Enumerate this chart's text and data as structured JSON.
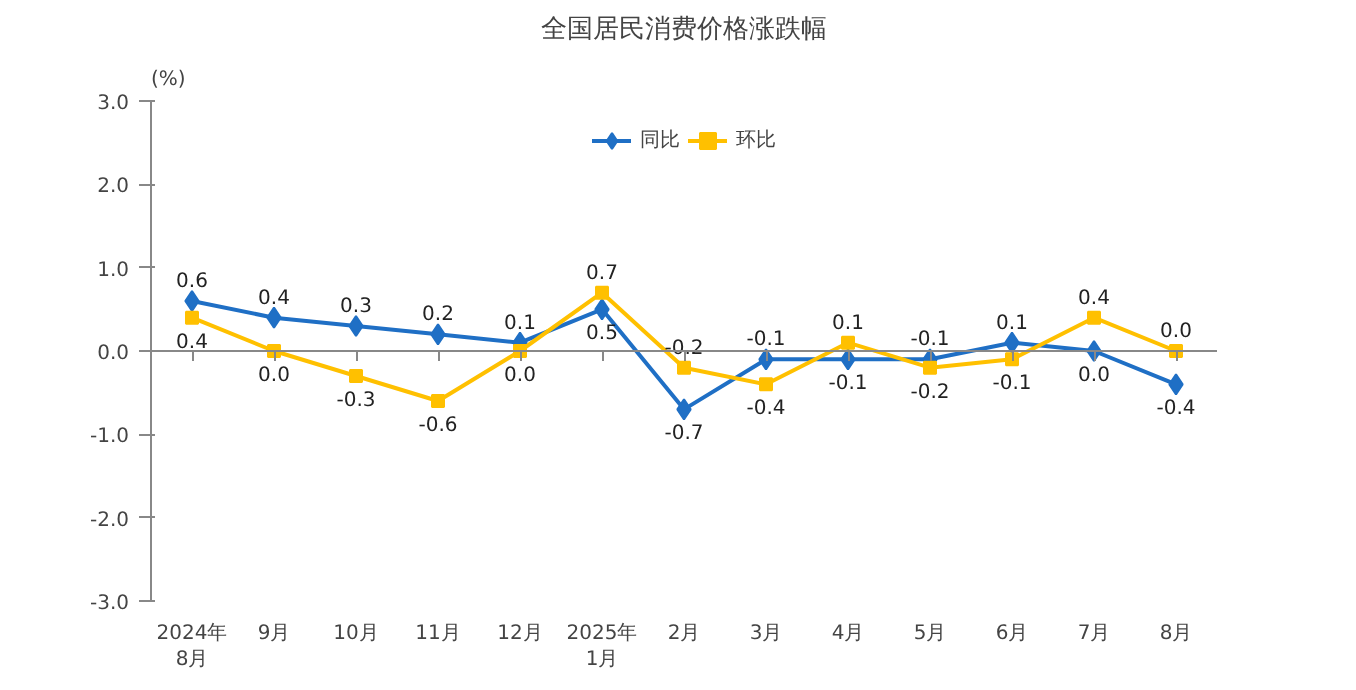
{
  "chart_data": {
    "type": "line",
    "title": "全国居民消费价格涨跌幅",
    "ylabel": "(%)",
    "categories": [
      "2024年\n8月",
      "9月",
      "10月",
      "11月",
      "12月",
      "2025年\n1月",
      "2月",
      "3月",
      "4月",
      "5月",
      "6月",
      "7月",
      "8月"
    ],
    "series": [
      {
        "name": "同比",
        "color": "#1f6fc5",
        "marker": "diamond",
        "values": [
          0.6,
          0.4,
          0.3,
          0.2,
          0.1,
          0.5,
          -0.7,
          -0.1,
          -0.1,
          -0.1,
          0.1,
          0.0,
          -0.4
        ],
        "value_labels": [
          "0.6",
          "0.4",
          "0.3",
          "0.2",
          "0.1",
          "0.5",
          "-0.7",
          "-0.1",
          "-0.1",
          "-0.1",
          "0.1",
          "0.0",
          "-0.4"
        ]
      },
      {
        "name": "环比",
        "color": "#ffc000",
        "marker": "square",
        "values": [
          0.4,
          0.0,
          -0.3,
          -0.6,
          0.0,
          0.7,
          -0.2,
          -0.4,
          0.1,
          -0.2,
          -0.1,
          0.4,
          0.0
        ],
        "value_labels": [
          "0.4",
          "0.0",
          "-0.3",
          "-0.6",
          "0.0",
          "0.7",
          "-0.2",
          "-0.4",
          "0.1",
          "-0.2",
          "-0.1",
          "0.4",
          "0.0"
        ]
      }
    ],
    "ylim": [
      -3.0,
      3.0
    ],
    "yticks": [
      {
        "value": -3,
        "label": "-3.0"
      },
      {
        "value": -2,
        "label": "-2.0"
      },
      {
        "value": -1,
        "label": "-1.0"
      },
      {
        "value": 0,
        "label": "0.0"
      },
      {
        "value": 1,
        "label": "1.0"
      },
      {
        "value": 2,
        "label": "2.0"
      },
      {
        "value": 3,
        "label": "3.0"
      }
    ],
    "legend": "top"
  }
}
